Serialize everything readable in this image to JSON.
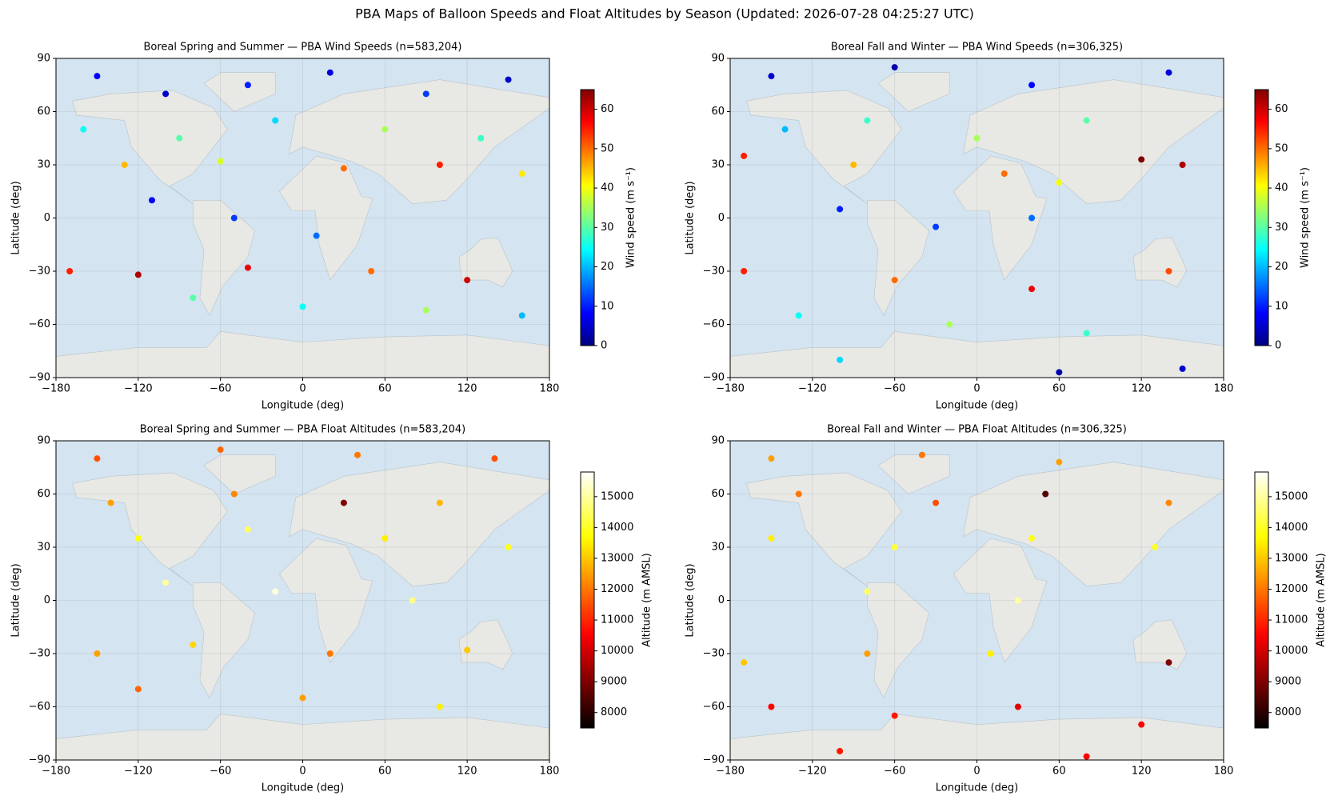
{
  "title": "PBA Maps of Balloon Speeds and Float Altitudes by Season (Updated: 2026-07-28 04:25:27 UTC)",
  "chart_data": [
    {
      "type": "scatter",
      "title": "Boreal Spring and Summer — PBA Wind Speeds  (n=583,204)",
      "xlabel": "Longitude (deg)",
      "ylabel": "Latitude (deg)",
      "x": [
        -150,
        -100,
        -40,
        20,
        90,
        150,
        -160,
        -90,
        -20,
        60,
        130,
        -130,
        -60,
        30,
        100,
        160,
        -110,
        -50,
        10,
        -170,
        -120,
        -40,
        50,
        120,
        -80,
        0,
        90,
        160
      ],
      "y": [
        80,
        70,
        75,
        82,
        70,
        78,
        50,
        45,
        55,
        50,
        45,
        30,
        32,
        28,
        30,
        25,
        10,
        0,
        -10,
        -30,
        -32,
        -28,
        -30,
        -35,
        -45,
        -50,
        -52,
        -55
      ],
      "c": [
        8,
        5,
        10,
        6,
        12,
        4,
        25,
        30,
        22,
        35,
        28,
        45,
        38,
        50,
        55,
        42,
        8,
        12,
        15,
        55,
        62,
        58,
        50,
        60,
        30,
        25,
        35,
        20
      ],
      "xlim": [
        -180,
        180
      ],
      "ylim": [
        -90,
        90
      ],
      "xticks": [
        {
          "value": -180,
          "label": "−180"
        },
        {
          "value": -120,
          "label": "−120"
        },
        {
          "value": -60,
          "label": "−60"
        },
        0,
        60,
        120,
        180
      ],
      "yticks": [
        {
          "value": -90,
          "label": "−90"
        },
        {
          "value": -60,
          "label": "−60"
        },
        {
          "value": -30,
          "label": "−30"
        },
        0,
        30,
        60,
        90
      ],
      "colorbar": {
        "label": "Wind speed (m s⁻¹)",
        "colormap": "jet",
        "lim": [
          0,
          65
        ],
        "ticks": [
          0,
          10,
          20,
          30,
          40,
          50,
          60
        ]
      }
    },
    {
      "type": "scatter",
      "title": "Boreal Fall and Winter — PBA Wind Speeds  (n=306,325)",
      "xlabel": "Longitude (deg)",
      "ylabel": "Latitude (deg)",
      "x": [
        -150,
        -60,
        40,
        140,
        -140,
        -80,
        0,
        80,
        -170,
        -90,
        20,
        120,
        150,
        60,
        -100,
        -30,
        40,
        -170,
        -60,
        40,
        140,
        -130,
        -20,
        80,
        -100,
        60,
        150
      ],
      "y": [
        80,
        85,
        75,
        82,
        50,
        55,
        45,
        55,
        35,
        30,
        25,
        33,
        30,
        20,
        5,
        -5,
        0,
        -30,
        -35,
        -40,
        -30,
        -55,
        -60,
        -65,
        -80,
        -87,
        -85
      ],
      "c": [
        5,
        3,
        8,
        6,
        20,
        28,
        35,
        30,
        55,
        45,
        50,
        65,
        62,
        40,
        10,
        12,
        15,
        55,
        50,
        58,
        52,
        25,
        35,
        28,
        22,
        3,
        5
      ],
      "xlim": [
        -180,
        180
      ],
      "ylim": [
        -90,
        90
      ],
      "xticks": [
        {
          "value": -180,
          "label": "−180"
        },
        {
          "value": -120,
          "label": "−120"
        },
        {
          "value": -60,
          "label": "−60"
        },
        0,
        60,
        120,
        180
      ],
      "yticks": [
        {
          "value": -90,
          "label": "−90"
        },
        {
          "value": -60,
          "label": "−60"
        },
        {
          "value": -30,
          "label": "−30"
        },
        0,
        30,
        60,
        90
      ],
      "colorbar": {
        "label": "Wind speed (m s⁻¹)",
        "colormap": "jet",
        "lim": [
          0,
          65
        ],
        "ticks": [
          0,
          10,
          20,
          30,
          40,
          50,
          60
        ]
      }
    },
    {
      "type": "scatter",
      "title": "Boreal Spring and Summer — PBA Float Altitudes  (n=583,204)",
      "xlabel": "Longitude (deg)",
      "ylabel": "Latitude (deg)",
      "x": [
        -150,
        -60,
        40,
        140,
        -140,
        -50,
        30,
        100,
        -120,
        -40,
        60,
        150,
        -100,
        -20,
        80,
        -150,
        -80,
        20,
        120,
        -120,
        0,
        100
      ],
      "y": [
        80,
        85,
        82,
        80,
        55,
        60,
        55,
        55,
        35,
        40,
        35,
        30,
        10,
        5,
        0,
        -30,
        -25,
        -30,
        -28,
        -50,
        -55,
        -60
      ],
      "c": [
        11500,
        11800,
        12000,
        11500,
        12500,
        12200,
        9000,
        12800,
        13800,
        14500,
        13500,
        14000,
        15000,
        15500,
        14800,
        12500,
        13200,
        12000,
        13000,
        11800,
        12500,
        13500
      ],
      "xlim": [
        -180,
        180
      ],
      "ylim": [
        -90,
        90
      ],
      "xticks": [
        {
          "value": -180,
          "label": "−180"
        },
        {
          "value": -120,
          "label": "−120"
        },
        {
          "value": -60,
          "label": "−60"
        },
        0,
        60,
        120,
        180
      ],
      "yticks": [
        {
          "value": -90,
          "label": "−90"
        },
        {
          "value": -60,
          "label": "−60"
        },
        {
          "value": -30,
          "label": "−30"
        },
        0,
        30,
        60,
        90
      ],
      "colorbar": {
        "label": "Altitude (m AMSL)",
        "colormap": "hot",
        "lim": [
          7500,
          15800
        ],
        "ticks": [
          8000,
          9000,
          10000,
          11000,
          12000,
          13000,
          14000,
          15000
        ]
      }
    },
    {
      "type": "scatter",
      "title": "Boreal Fall and Winter — PBA Float Altitudes  (n=306,325)",
      "xlabel": "Longitude (deg)",
      "ylabel": "Latitude (deg)",
      "x": [
        -150,
        -40,
        60,
        -130,
        -30,
        50,
        140,
        -150,
        -60,
        40,
        130,
        -80,
        30,
        -170,
        -80,
        10,
        140,
        -150,
        -60,
        30,
        120,
        -100,
        80
      ],
      "y": [
        80,
        82,
        78,
        60,
        55,
        60,
        55,
        35,
        30,
        35,
        30,
        5,
        0,
        -35,
        -30,
        -30,
        -35,
        -60,
        -65,
        -60,
        -70,
        -85,
        -88
      ],
      "c": [
        12500,
        12000,
        12500,
        12000,
        11500,
        8500,
        12200,
        13500,
        14200,
        13800,
        14000,
        14500,
        15000,
        13000,
        12500,
        13500,
        9000,
        10500,
        10800,
        10200,
        10500,
        10800,
        10500
      ],
      "xlim": [
        -180,
        180
      ],
      "ylim": [
        -90,
        90
      ],
      "xticks": [
        {
          "value": -180,
          "label": "−180"
        },
        {
          "value": -120,
          "label": "−120"
        },
        {
          "value": -60,
          "label": "−60"
        },
        0,
        60,
        120,
        180
      ],
      "yticks": [
        {
          "value": -90,
          "label": "−90"
        },
        {
          "value": -60,
          "label": "−60"
        },
        {
          "value": -30,
          "label": "−30"
        },
        0,
        30,
        60,
        90
      ],
      "colorbar": {
        "label": "Altitude (m AMSL)",
        "colormap": "hot",
        "lim": [
          7500,
          15800
        ],
        "ticks": [
          8000,
          9000,
          10000,
          11000,
          12000,
          13000,
          14000,
          15000
        ]
      }
    }
  ]
}
